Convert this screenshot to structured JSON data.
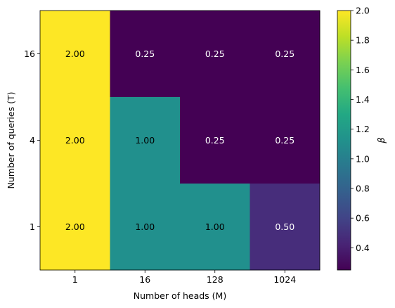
{
  "chart_data": {
    "type": "heatmap",
    "xlabel": "Number of heads (M)",
    "ylabel": "Number of queries (T)",
    "x_categories": [
      "1",
      "16",
      "128",
      "1024"
    ],
    "y_categories": [
      "16",
      "4",
      "1"
    ],
    "values": [
      [
        2.0,
        0.25,
        0.25,
        0.25
      ],
      [
        2.0,
        1.0,
        0.25,
        0.25
      ],
      [
        2.0,
        1.0,
        1.0,
        0.5
      ]
    ],
    "cell_labels": [
      [
        "2.00",
        "0.25",
        "0.25",
        "0.25"
      ],
      [
        "2.00",
        "1.00",
        "0.25",
        "0.25"
      ],
      [
        "2.00",
        "1.00",
        "1.00",
        "0.50"
      ]
    ],
    "colormap": "viridis",
    "colorbar": {
      "label": "β",
      "range": [
        0.25,
        2.0
      ],
      "ticks": [
        "0.4",
        "0.6",
        "0.8",
        "1.0",
        "1.2",
        "1.4",
        "1.6",
        "1.8",
        "2.0"
      ]
    },
    "colors": {
      "2.00": "#fde725",
      "1.00": "#21908d",
      "0.50": "#472d7b",
      "0.25": "#440154"
    }
  }
}
